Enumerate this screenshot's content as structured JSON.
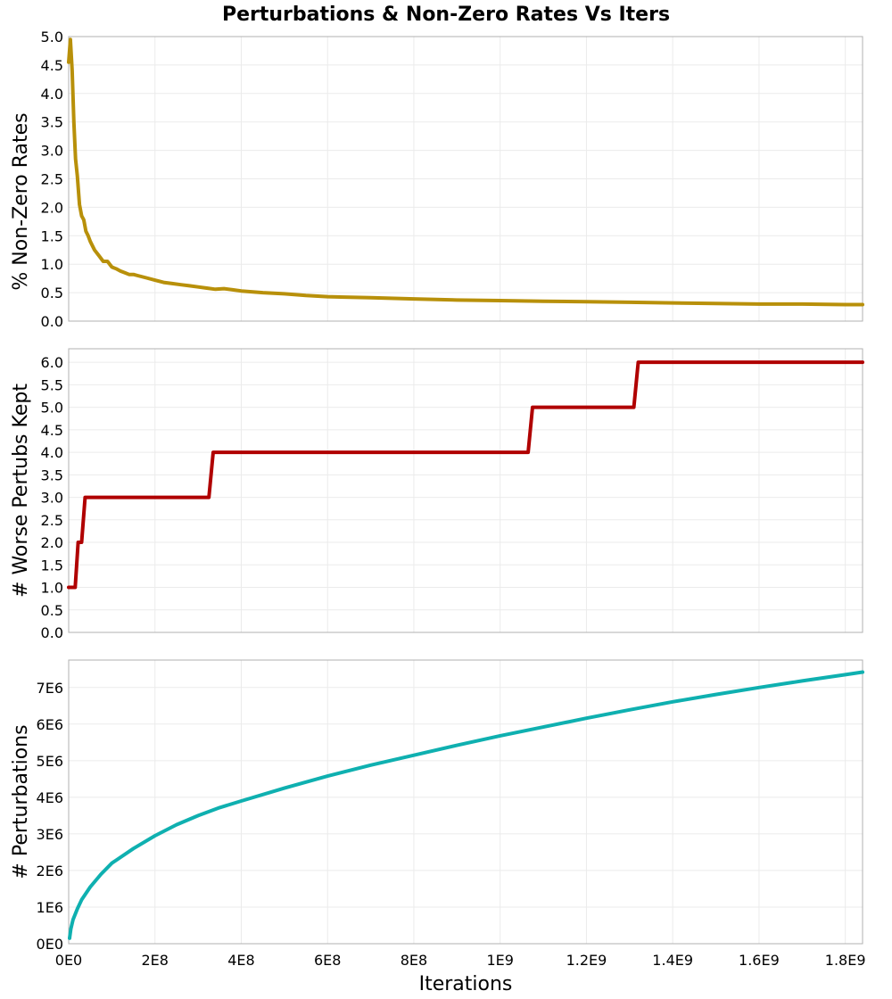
{
  "figure_title": "Perturbations & Non-Zero Rates Vs Iters",
  "x_axis": {
    "label": "Iterations",
    "ticks": [
      {
        "value": 0,
        "label": "0E0"
      },
      {
        "value": 200000000,
        "label": "2E8"
      },
      {
        "value": 400000000,
        "label": "4E8"
      },
      {
        "value": 600000000,
        "label": "6E8"
      },
      {
        "value": 800000000,
        "label": "8E8"
      },
      {
        "value": 1000000000,
        "label": "1E9"
      },
      {
        "value": 1200000000,
        "label": "1.2E9"
      },
      {
        "value": 1400000000,
        "label": "1.4E9"
      },
      {
        "value": 1600000000,
        "label": "1.6E9"
      },
      {
        "value": 1800000000,
        "label": "1.8E9"
      }
    ]
  },
  "chart_data": [
    {
      "type": "line",
      "ylabel": "% Non-Zero Rates",
      "xlim": [
        0,
        1840000000
      ],
      "ylim": [
        0,
        5
      ],
      "color": "#b8900a",
      "yticks": [
        {
          "value": 0,
          "label": "0.0"
        },
        {
          "value": 0.5,
          "label": "0.5"
        },
        {
          "value": 1,
          "label": "1.0"
        },
        {
          "value": 1.5,
          "label": "1.5"
        },
        {
          "value": 2,
          "label": "2.0"
        },
        {
          "value": 2.5,
          "label": "2.5"
        },
        {
          "value": 3,
          "label": "3.0"
        },
        {
          "value": 3.5,
          "label": "3.5"
        },
        {
          "value": 4,
          "label": "4.0"
        },
        {
          "value": 4.5,
          "label": "4.5"
        },
        {
          "value": 5,
          "label": "5.0"
        }
      ],
      "x": [
        0,
        4000000,
        8000000,
        12000000,
        16000000,
        20000000,
        25000000,
        30000000,
        35000000,
        40000000,
        45000000,
        50000000,
        60000000,
        70000000,
        80000000,
        90000000,
        100000000,
        110000000,
        120000000,
        130000000,
        140000000,
        150000000,
        160000000,
        180000000,
        200000000,
        220000000,
        240000000,
        260000000,
        280000000,
        300000000,
        320000000,
        340000000,
        360000000,
        380000000,
        400000000,
        450000000,
        500000000,
        550000000,
        600000000,
        700000000,
        800000000,
        900000000,
        1000000000,
        1100000000,
        1200000000,
        1300000000,
        1400000000,
        1500000000,
        1600000000,
        1700000000,
        1800000000,
        1840000000
      ],
      "y": [
        4.55,
        4.95,
        4.4,
        3.5,
        2.85,
        2.55,
        2.05,
        1.85,
        1.78,
        1.58,
        1.5,
        1.4,
        1.25,
        1.15,
        1.05,
        1.05,
        0.95,
        0.92,
        0.88,
        0.85,
        0.82,
        0.82,
        0.8,
        0.76,
        0.72,
        0.68,
        0.66,
        0.64,
        0.62,
        0.6,
        0.58,
        0.56,
        0.57,
        0.55,
        0.53,
        0.5,
        0.48,
        0.45,
        0.43,
        0.41,
        0.39,
        0.37,
        0.36,
        0.35,
        0.34,
        0.33,
        0.32,
        0.31,
        0.3,
        0.3,
        0.29,
        0.29
      ]
    },
    {
      "type": "line",
      "ylabel": "# Worse Pertubs Kept",
      "xlim": [
        0,
        1840000000
      ],
      "ylim": [
        0,
        6.3
      ],
      "color": "#b00000",
      "yticks": [
        {
          "value": 0,
          "label": "0.0"
        },
        {
          "value": 0.5,
          "label": "0.5"
        },
        {
          "value": 1,
          "label": "1.0"
        },
        {
          "value": 1.5,
          "label": "1.5"
        },
        {
          "value": 2,
          "label": "2.0"
        },
        {
          "value": 2.5,
          "label": "2.5"
        },
        {
          "value": 3,
          "label": "3.0"
        },
        {
          "value": 3.5,
          "label": "3.5"
        },
        {
          "value": 4,
          "label": "4.0"
        },
        {
          "value": 4.5,
          "label": "4.5"
        },
        {
          "value": 5,
          "label": "5.0"
        },
        {
          "value": 5.5,
          "label": "5.5"
        },
        {
          "value": 6,
          "label": "6.0"
        }
      ],
      "x": [
        0,
        15000000,
        22000000,
        30000000,
        38000000,
        325000000,
        335000000,
        1065000000,
        1075000000,
        1310000000,
        1320000000,
        1840000000
      ],
      "y": [
        1,
        1,
        2,
        2,
        3,
        3,
        4,
        4,
        5,
        5,
        6,
        6
      ]
    },
    {
      "type": "line",
      "ylabel": "# Perturbations",
      "xlim": [
        0,
        1840000000
      ],
      "ylim": [
        0,
        7750000
      ],
      "color": "#0fb0b0",
      "yticks": [
        {
          "value": 0,
          "label": "0E0"
        },
        {
          "value": 1000000,
          "label": "1E6"
        },
        {
          "value": 2000000,
          "label": "2E6"
        },
        {
          "value": 3000000,
          "label": "3E6"
        },
        {
          "value": 4000000,
          "label": "4E6"
        },
        {
          "value": 5000000,
          "label": "5E6"
        },
        {
          "value": 6000000,
          "label": "6E6"
        },
        {
          "value": 7000000,
          "label": "7E6"
        }
      ],
      "x": [
        2000000,
        5000000,
        10000000,
        20000000,
        30000000,
        50000000,
        75000000,
        100000000,
        150000000,
        200000000,
        250000000,
        300000000,
        350000000,
        400000000,
        500000000,
        600000000,
        700000000,
        800000000,
        900000000,
        1000000000,
        1100000000,
        1200000000,
        1300000000,
        1400000000,
        1500000000,
        1600000000,
        1700000000,
        1800000000,
        1840000000
      ],
      "y": [
        150000,
        400000,
        650000,
        950000,
        1200000,
        1550000,
        1900000,
        2200000,
        2600000,
        2950000,
        3250000,
        3500000,
        3720000,
        3900000,
        4250000,
        4580000,
        4880000,
        5150000,
        5420000,
        5680000,
        5920000,
        6160000,
        6390000,
        6610000,
        6810000,
        7000000,
        7180000,
        7350000,
        7420000
      ]
    }
  ]
}
